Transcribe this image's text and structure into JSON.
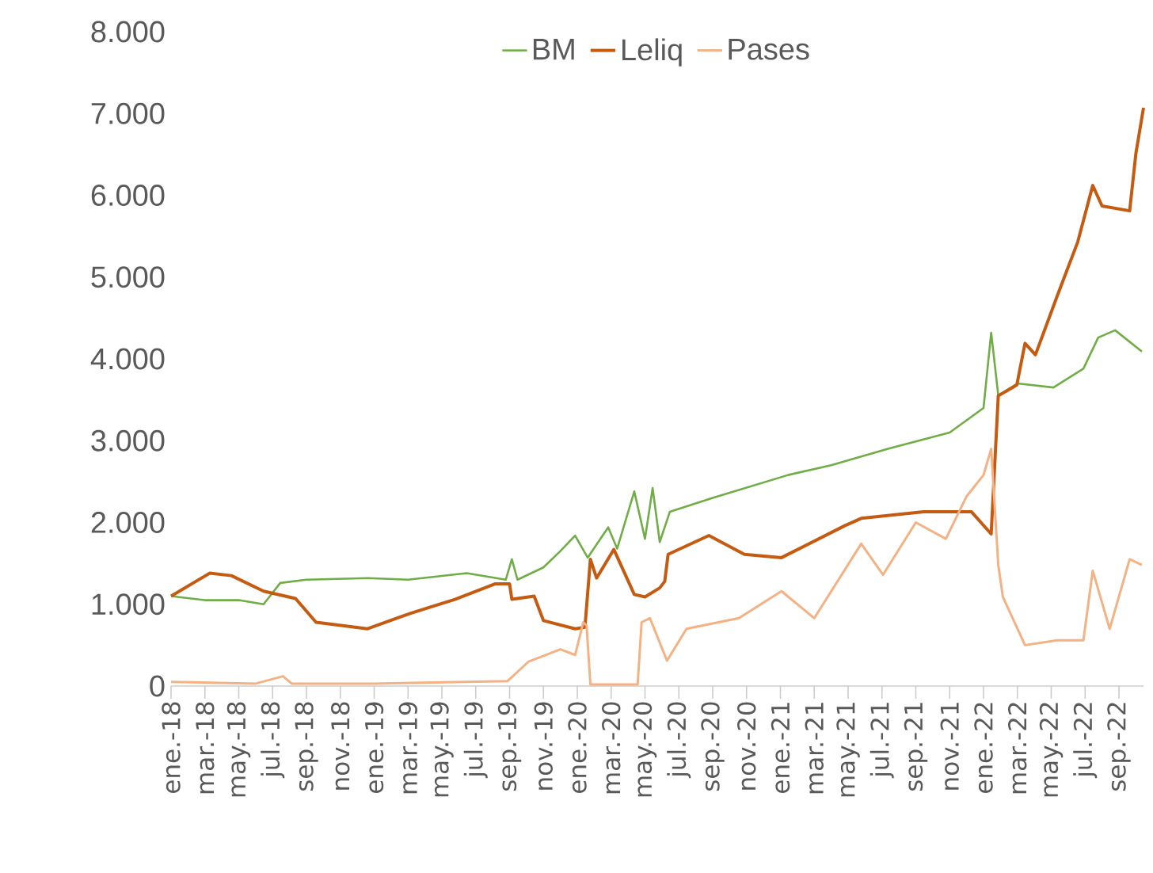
{
  "chart_data": {
    "type": "line",
    "ylim": [
      0,
      8000
    ],
    "yticks": [
      0,
      {
        "value": 1000,
        "label": "1.000"
      },
      {
        "value": 2000,
        "label": "2.000"
      },
      {
        "value": 3000,
        "label": "3.000"
      },
      {
        "value": 4000,
        "label": "4.000"
      },
      {
        "value": 5000,
        "label": "5.000"
      },
      {
        "value": 6000,
        "label": "6.000"
      },
      {
        "value": 7000,
        "label": "7.000"
      },
      {
        "value": 8000,
        "label": "8.000"
      }
    ],
    "xlim": [
      "2018-01-01",
      "2022-10-15"
    ],
    "xticks": [
      {
        "value": "2018-01",
        "label": "ene.-18"
      },
      {
        "value": "2018-03",
        "label": "mar.-18"
      },
      {
        "value": "2018-05",
        "label": "may.-18"
      },
      {
        "value": "2018-07",
        "label": "jul.-18"
      },
      {
        "value": "2018-09",
        "label": "sep.-18"
      },
      {
        "value": "2018-11",
        "label": "nov.-18"
      },
      {
        "value": "2019-01",
        "label": "ene.-19"
      },
      {
        "value": "2019-03",
        "label": "mar.-19"
      },
      {
        "value": "2019-05",
        "label": "may.-19"
      },
      {
        "value": "2019-07",
        "label": "jul.-19"
      },
      {
        "value": "2019-09",
        "label": "sep.-19"
      },
      {
        "value": "2019-11",
        "label": "nov.-19"
      },
      {
        "value": "2020-01",
        "label": "ene.-20"
      },
      {
        "value": "2020-03",
        "label": "mar.-20"
      },
      {
        "value": "2020-05",
        "label": "may.-20"
      },
      {
        "value": "2020-07",
        "label": "jul.-20"
      },
      {
        "value": "2020-09",
        "label": "sep.-20"
      },
      {
        "value": "2020-11",
        "label": "nov.-20"
      },
      {
        "value": "2021-01",
        "label": "ene.-21"
      },
      {
        "value": "2021-03",
        "label": "mar.-21"
      },
      {
        "value": "2021-05",
        "label": "may.-21"
      },
      {
        "value": "2021-07",
        "label": "jul.-21"
      },
      {
        "value": "2021-09",
        "label": "sep.-21"
      },
      {
        "value": "2021-11",
        "label": "nov.-21"
      },
      {
        "value": "2022-01",
        "label": "ene.-22"
      },
      {
        "value": "2022-03",
        "label": "mar.-22"
      },
      {
        "value": "2022-05",
        "label": "may.-22"
      },
      {
        "value": "2022-07",
        "label": "jul.-22"
      },
      {
        "value": "2022-09",
        "label": "sep.-22"
      }
    ],
    "grid": false,
    "legend": "top",
    "marker": "none",
    "line_style": "solid",
    "series": [
      {
        "name": "BM",
        "color": "#70ad47",
        "x": [
          "2018-01-01",
          "2018-03-01",
          "2018-05-01",
          "2018-06-15",
          "2018-07-15",
          "2018-09-01",
          "2018-12-20",
          "2019-03-01",
          "2019-06-15",
          "2019-08-25",
          "2019-09-05",
          "2019-09-15",
          "2019-11-01",
          "2019-12-01",
          "2019-12-28",
          "2020-01-20",
          "2020-02-25",
          "2020-03-12",
          "2020-04-12",
          "2020-05-01",
          "2020-05-15",
          "2020-05-28",
          "2020-06-15",
          "2020-09-01",
          "2021-01-15",
          "2021-04-01",
          "2021-07-12",
          "2021-11-01",
          "2022-01-01",
          "2022-01-15",
          "2022-01-28",
          "2022-03-01",
          "2022-05-05",
          "2022-06-28",
          "2022-07-25",
          "2022-08-25",
          "2022-10-12"
        ],
        "values": [
          1100,
          1050,
          1050,
          1000,
          1260,
          1300,
          1320,
          1300,
          1380,
          1300,
          1550,
          1300,
          1450,
          1650,
          1840,
          1570,
          1940,
          1680,
          2380,
          1800,
          2420,
          1760,
          2130,
          2300,
          2580,
          2700,
          2900,
          3100,
          3400,
          4320,
          3550,
          3700,
          3650,
          3880,
          4260,
          4350,
          4090
        ]
      },
      {
        "name": "Leliq",
        "color": "#c55a11",
        "x": [
          "2018-01-01",
          "2018-03-10",
          "2018-04-18",
          "2018-06-15",
          "2018-08-12",
          "2018-09-18",
          "2018-12-20",
          "2019-03-06",
          "2019-05-25",
          "2019-08-06",
          "2019-09-01",
          "2019-09-05",
          "2019-10-15",
          "2019-11-01",
          "2019-12-28",
          "2020-01-15",
          "2020-01-25",
          "2020-02-05",
          "2020-03-06",
          "2020-04-12",
          "2020-05-01",
          "2020-05-28",
          "2020-06-06",
          "2020-06-12",
          "2020-08-25",
          "2020-10-28",
          "2021-01-03",
          "2021-04-25",
          "2021-05-25",
          "2021-09-15",
          "2021-12-10",
          "2022-01-15",
          "2022-01-28",
          "2022-02-28",
          "2022-03-15",
          "2022-04-03",
          "2022-05-12",
          "2022-06-18",
          "2022-07-15",
          "2022-08-01",
          "2022-09-20",
          "2022-10-01",
          "2022-10-15"
        ],
        "values": [
          1100,
          1380,
          1350,
          1160,
          1070,
          780,
          700,
          890,
          1060,
          1250,
          1250,
          1060,
          1100,
          800,
          700,
          720,
          1550,
          1320,
          1670,
          1120,
          1090,
          1200,
          1280,
          1610,
          1840,
          1610,
          1570,
          1960,
          2050,
          2130,
          2130,
          1860,
          3550,
          3680,
          4190,
          4050,
          4770,
          5430,
          6120,
          5870,
          5810,
          6510,
          7070
        ]
      },
      {
        "name": "Pases",
        "color": "#f4b183",
        "x": [
          "2018-01-01",
          "2018-06-01",
          "2018-07-20",
          "2018-08-05",
          "2019-01-01",
          "2019-08-28",
          "2019-10-05",
          "2019-12-01",
          "2019-12-28",
          "2020-01-12",
          "2020-01-18",
          "2020-01-25",
          "2020-04-18",
          "2020-04-25",
          "2020-05-10",
          "2020-06-10",
          "2020-07-15",
          "2020-10-18",
          "2021-01-03",
          "2021-03-01",
          "2021-05-25",
          "2021-07-03",
          "2021-09-01",
          "2021-10-25",
          "2021-12-01",
          "2022-01-01",
          "2022-01-15",
          "2022-01-28",
          "2022-02-05",
          "2022-03-15",
          "2022-05-12",
          "2022-06-28",
          "2022-07-15",
          "2022-08-15",
          "2022-09-20",
          "2022-10-12"
        ],
        "values": [
          50,
          30,
          120,
          30,
          30,
          60,
          300,
          450,
          380,
          780,
          740,
          20,
          20,
          780,
          830,
          310,
          700,
          830,
          1160,
          830,
          1740,
          1360,
          2000,
          1800,
          2320,
          2580,
          2900,
          1480,
          1090,
          500,
          560,
          560,
          1410,
          700,
          1550,
          1480
        ]
      }
    ]
  }
}
